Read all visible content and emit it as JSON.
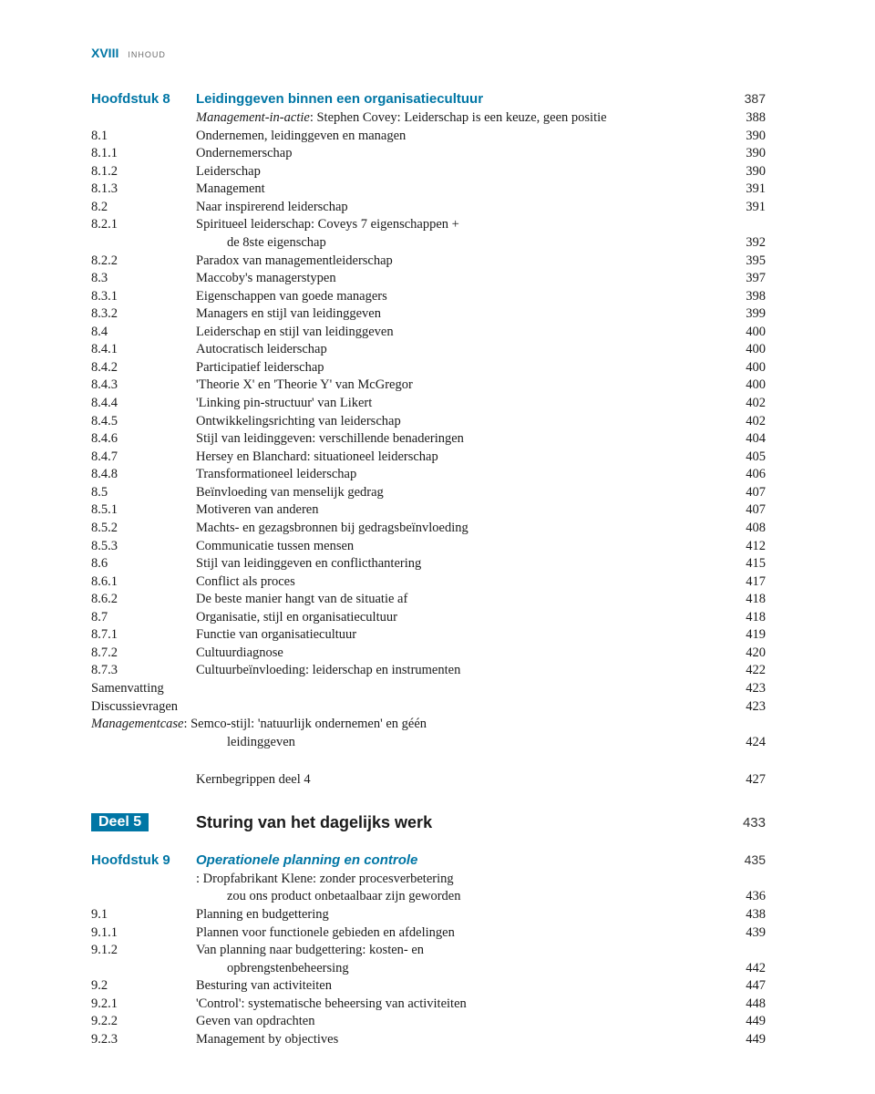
{
  "header": {
    "page_num": "XVIII",
    "section": "INHOUD"
  },
  "ch8": {
    "label": "Hoofdstuk 8",
    "title": "Leidinggeven binnen een organisatiecultuur",
    "page": "387",
    "rows": [
      {
        "num": "",
        "text_prefix": "Management-in-actie",
        "text": ": Stephen Covey: Leiderschap is een keuze, geen positie",
        "page": "388"
      },
      {
        "num": "8.1",
        "text": "Ondernemen, leidinggeven en managen",
        "page": "390"
      },
      {
        "num": "8.1.1",
        "text": "Ondernemerschap",
        "page": "390"
      },
      {
        "num": "8.1.2",
        "text": "Leiderschap",
        "page": "390"
      },
      {
        "num": "8.1.3",
        "text": "Management",
        "page": "391"
      },
      {
        "num": "8.2",
        "text": "Naar inspirerend leiderschap",
        "page": "391"
      },
      {
        "num": "8.2.1",
        "text": "Spiritueel leiderschap: Coveys 7 eigenschappen +",
        "page": ""
      },
      {
        "num": "",
        "sub": true,
        "text": "de 8ste eigenschap",
        "page": "392"
      },
      {
        "num": "8.2.2",
        "text": "Paradox van managementleiderschap",
        "page": "395"
      },
      {
        "num": "8.3",
        "text": "Maccoby's managerstypen",
        "page": "397"
      },
      {
        "num": "8.3.1",
        "text": "Eigenschappen van goede managers",
        "page": "398"
      },
      {
        "num": "8.3.2",
        "text": "Managers en stijl van leidinggeven",
        "page": "399"
      },
      {
        "num": "8.4",
        "text": "Leiderschap en stijl van leidinggeven",
        "page": "400"
      },
      {
        "num": "8.4.1",
        "text": "Autocratisch leiderschap",
        "page": "400"
      },
      {
        "num": "8.4.2",
        "text": "Participatief leiderschap",
        "page": "400"
      },
      {
        "num": "8.4.3",
        "text": "'Theorie X' en 'Theorie Y' van McGregor",
        "page": "400"
      },
      {
        "num": "8.4.4",
        "text": "'Linking pin-structuur' van Likert",
        "page": "402"
      },
      {
        "num": "8.4.5",
        "text": "Ontwikkelingsrichting van leiderschap",
        "page": "402"
      },
      {
        "num": "8.4.6",
        "text": "Stijl van leidinggeven: verschillende benaderingen",
        "page": "404"
      },
      {
        "num": "8.4.7",
        "text": "Hersey en Blanchard: situationeel leiderschap",
        "page": "405"
      },
      {
        "num": "8.4.8",
        "text": "Transformationeel leiderschap",
        "page": "406"
      },
      {
        "num": "8.5",
        "text": "Beïnvloeding van menselijk gedrag",
        "page": "407"
      },
      {
        "num": "8.5.1",
        "text": "Motiveren van anderen",
        "page": "407"
      },
      {
        "num": "8.5.2",
        "text": "Machts- en gezagsbronnen bij gedragsbeïnvloeding",
        "page": "408"
      },
      {
        "num": "8.5.3",
        "text": "Communicatie tussen mensen",
        "page": "412"
      },
      {
        "num": "8.6",
        "text": "Stijl van leidinggeven en conflicthantering",
        "page": "415"
      },
      {
        "num": "8.6.1",
        "text": "Conflict als proces",
        "page": "417"
      },
      {
        "num": "8.6.2",
        "text": "De beste manier hangt van de situatie af",
        "page": "418"
      },
      {
        "num": "8.7",
        "text": "Organisatie, stijl en organisatiecultuur",
        "page": "418"
      },
      {
        "num": "8.7.1",
        "text": "Functie van organisatiecultuur",
        "page": "419"
      },
      {
        "num": "8.7.2",
        "text": "Cultuurdiagnose",
        "page": "420"
      },
      {
        "num": "8.7.3",
        "text": "Cultuurbeïnvloeding: leiderschap en instrumenten",
        "page": "422"
      },
      {
        "num": "",
        "text": "Samenvatting",
        "page": "423",
        "flush": true
      },
      {
        "num": "",
        "text": "Discussievragen",
        "page": "423",
        "flush": true
      },
      {
        "num": "",
        "text_prefix": "Managementcase",
        "text": ": Semco-stijl: 'natuurlijk ondernemen' en géén",
        "page": "",
        "flush": true
      },
      {
        "num": "",
        "sub": true,
        "text": "leidinggeven",
        "page": "424"
      }
    ],
    "kern_label": "Kernbegrippen deel 4",
    "kern_page": "427"
  },
  "part5": {
    "label": "Deel 5",
    "title": "Sturing van het dagelijks werk",
    "page": "433"
  },
  "ch9": {
    "label": "Hoofdstuk 9",
    "title": "Operationele planning en controle",
    "page": "435",
    "rows": [
      {
        "num": "",
        "text": ": Dropfabrikant Klene: zonder procesverbetering",
        "page": ""
      },
      {
        "num": "",
        "sub": true,
        "text": "zou ons product onbetaalbaar zijn geworden",
        "page": "436"
      },
      {
        "num": "9.1",
        "text": "Planning en budgettering",
        "page": "438"
      },
      {
        "num": "9.1.1",
        "text": "Plannen voor functionele gebieden en afdelingen",
        "page": "439"
      },
      {
        "num": "9.1.2",
        "text": "Van planning naar budgettering: kosten- en",
        "page": ""
      },
      {
        "num": "",
        "sub": true,
        "text": "opbrengstenbeheersing",
        "page": "442"
      },
      {
        "num": "9.2",
        "text": "Besturing van activiteiten",
        "page": "447"
      },
      {
        "num": "9.2.1",
        "text": "'Control': systematische beheersing van activiteiten",
        "page": "448"
      },
      {
        "num": "9.2.2",
        "text": "Geven van opdrachten",
        "page": "449"
      },
      {
        "num": "9.2.3",
        "text": "Management by objectives",
        "page": "449"
      }
    ]
  }
}
